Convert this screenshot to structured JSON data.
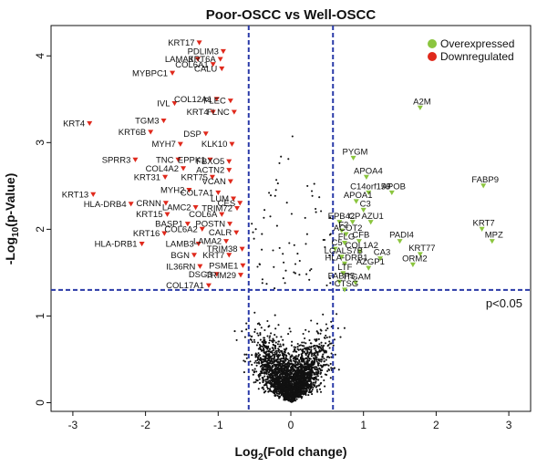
{
  "chart_data": {
    "type": "scatter",
    "title": "Poor-OSCC vs Well-OSCC",
    "xlabel_base": "Log",
    "xlabel_sub": "2",
    "xlabel_rest": "(Fold change)",
    "ylabel_base": "-Log",
    "ylabel_sub": "10",
    "ylabel_rest": "(p-Value)",
    "xlim": [
      -3.3,
      3.3
    ],
    "ylim": [
      -0.1,
      4.35
    ],
    "xticks": [
      -3,
      -2,
      -1,
      0,
      1,
      2,
      3
    ],
    "yticks": [
      0,
      1,
      2,
      3,
      4
    ],
    "thresholds": {
      "fc_low": -0.58,
      "fc_high": 0.58,
      "p": 1.3
    },
    "threshold_label": "p<0.05",
    "legend_position": "top-right",
    "legend": [
      {
        "label": "Overexpressed",
        "color": "#8bc53f"
      },
      {
        "label": "Downregulated",
        "color": "#e0291c"
      }
    ],
    "colors": {
      "up": "#8bc53f",
      "down": "#e0291c",
      "ns": "#111111",
      "threshold": "#2a3aa8"
    },
    "downregulated": [
      {
        "gene": "KRT17",
        "x": -1.26,
        "y": 4.15
      },
      {
        "gene": "PDLIM3",
        "x": -0.93,
        "y": 4.05
      },
      {
        "gene": "LAMA3",
        "x": -1.28,
        "y": 3.96
      },
      {
        "gene": "KRT6A",
        "x": -0.97,
        "y": 3.96
      },
      {
        "gene": "MYBPC1",
        "x": -1.63,
        "y": 3.8
      },
      {
        "gene": "COL6A1",
        "x": -1.07,
        "y": 3.9
      },
      {
        "gene": "CALU",
        "x": -0.95,
        "y": 3.85
      },
      {
        "gene": "COL12A1",
        "x": -1.02,
        "y": 3.5
      },
      {
        "gene": "PLEC",
        "x": -0.83,
        "y": 3.48
      },
      {
        "gene": "IVL",
        "x": -1.6,
        "y": 3.45
      },
      {
        "gene": "KRT4",
        "x": -1.07,
        "y": 3.35
      },
      {
        "gene": "FLNC",
        "x": -0.78,
        "y": 3.35
      },
      {
        "gene": "KRT4",
        "x": -2.77,
        "y": 3.22
      },
      {
        "gene": "TGM3",
        "x": -1.75,
        "y": 3.25
      },
      {
        "gene": "KRT6B",
        "x": -1.93,
        "y": 3.12
      },
      {
        "gene": "DSP",
        "x": -1.17,
        "y": 3.1
      },
      {
        "gene": "MYH7",
        "x": -1.52,
        "y": 2.98
      },
      {
        "gene": "KLK10",
        "x": -0.81,
        "y": 2.98
      },
      {
        "gene": "SPRR3",
        "x": -2.14,
        "y": 2.8
      },
      {
        "gene": "TNC",
        "x": -1.55,
        "y": 2.8
      },
      {
        "gene": "EPPK1",
        "x": -1.11,
        "y": 2.8
      },
      {
        "gene": "FBXO5",
        "x": -0.85,
        "y": 2.78
      },
      {
        "gene": "COL4A2",
        "x": -1.48,
        "y": 2.7
      },
      {
        "gene": "ACTN2",
        "x": -0.85,
        "y": 2.68
      },
      {
        "gene": "KRT31",
        "x": -1.73,
        "y": 2.6
      },
      {
        "gene": "KRT75",
        "x": -1.08,
        "y": 2.6
      },
      {
        "gene": "VCAN",
        "x": -0.83,
        "y": 2.55
      },
      {
        "gene": "KRT13",
        "x": -2.72,
        "y": 2.4
      },
      {
        "gene": "MYH2",
        "x": -1.4,
        "y": 2.45
      },
      {
        "gene": "COL7A1",
        "x": -1.0,
        "y": 2.42
      },
      {
        "gene": "LUM",
        "x": -0.79,
        "y": 2.35
      },
      {
        "gene": "HLA-DRB4",
        "x": -2.2,
        "y": 2.29
      },
      {
        "gene": "CRNN",
        "x": -1.72,
        "y": 2.3
      },
      {
        "gene": "CES",
        "x": -0.7,
        "y": 2.3
      },
      {
        "gene": "LAMC2",
        "x": -1.31,
        "y": 2.25
      },
      {
        "gene": "TRIM72",
        "x": -0.74,
        "y": 2.24
      },
      {
        "gene": "KRT15",
        "x": -1.7,
        "y": 2.17
      },
      {
        "gene": "COL6A",
        "x": -0.95,
        "y": 2.17
      },
      {
        "gene": "BASP1",
        "x": -1.42,
        "y": 2.06
      },
      {
        "gene": "POSTN",
        "x": -0.84,
        "y": 2.06
      },
      {
        "gene": "KRT16",
        "x": -1.74,
        "y": 1.95
      },
      {
        "gene": "COL6A2",
        "x": -1.22,
        "y": 2.0
      },
      {
        "gene": "CALR",
        "x": -0.75,
        "y": 1.96
      },
      {
        "gene": "HLA-DRB1",
        "x": -2.05,
        "y": 1.83
      },
      {
        "gene": "LAMA2",
        "x": -0.89,
        "y": 1.86
      },
      {
        "gene": "LAMB3",
        "x": -1.27,
        "y": 1.83
      },
      {
        "gene": "TRIM38",
        "x": -0.67,
        "y": 1.77
      },
      {
        "gene": "BGN",
        "x": -1.33,
        "y": 1.7
      },
      {
        "gene": "KRT7",
        "x": -0.85,
        "y": 1.7
      },
      {
        "gene": "IL36RN",
        "x": -1.25,
        "y": 1.57
      },
      {
        "gene": "PSME1",
        "x": -0.66,
        "y": 1.58
      },
      {
        "gene": "DSG3",
        "x": -1.02,
        "y": 1.48
      },
      {
        "gene": "TRIM29",
        "x": -0.69,
        "y": 1.47
      },
      {
        "gene": "COL17A1",
        "x": -1.13,
        "y": 1.35
      }
    ],
    "overexpressed": [
      {
        "gene": "A2M",
        "x": 1.78,
        "y": 3.4
      },
      {
        "gene": "PYGM",
        "x": 0.86,
        "y": 2.82
      },
      {
        "gene": "APOA4",
        "x": 1.04,
        "y": 2.6
      },
      {
        "gene": "FABP9",
        "x": 2.65,
        "y": 2.5
      },
      {
        "gene": "C14orf159",
        "x": 1.07,
        "y": 2.42
      },
      {
        "gene": "APOB",
        "x": 1.39,
        "y": 2.42
      },
      {
        "gene": "APOA1",
        "x": 0.9,
        "y": 2.32
      },
      {
        "gene": "C3",
        "x": 1.0,
        "y": 2.22
      },
      {
        "gene": "EPB42",
        "x": 0.67,
        "y": 2.08
      },
      {
        "gene": "CP",
        "x": 0.85,
        "y": 2.08
      },
      {
        "gene": "AZU1",
        "x": 1.1,
        "y": 2.08
      },
      {
        "gene": "F2",
        "x": 0.7,
        "y": 1.98
      },
      {
        "gene": "ACOT2",
        "x": 0.76,
        "y": 1.94
      },
      {
        "gene": "KRT7",
        "x": 2.63,
        "y": 2.0
      },
      {
        "gene": "CFB",
        "x": 0.94,
        "y": 1.86
      },
      {
        "gene": "PADI4",
        "x": 1.5,
        "y": 1.86
      },
      {
        "gene": "MPZ",
        "x": 2.77,
        "y": 1.86
      },
      {
        "gene": "FLG",
        "x": 0.74,
        "y": 1.84
      },
      {
        "gene": "C5",
        "x": 0.61,
        "y": 1.77
      },
      {
        "gene": "COL1A2",
        "x": 0.95,
        "y": 1.74
      },
      {
        "gene": "KRT77",
        "x": 1.78,
        "y": 1.71
      },
      {
        "gene": "LGALS7B",
        "x": 0.7,
        "y": 1.68
      },
      {
        "gene": "CA3",
        "x": 1.23,
        "y": 1.66
      },
      {
        "gene": "HLA-DRB1",
        "x": 0.74,
        "y": 1.6
      },
      {
        "gene": "ORM2",
        "x": 1.68,
        "y": 1.59
      },
      {
        "gene": "AZGP1",
        "x": 1.07,
        "y": 1.55
      },
      {
        "gene": "LTF",
        "x": 0.72,
        "y": 1.49
      },
      {
        "gene": "FABP5",
        "x": 0.67,
        "y": 1.39
      },
      {
        "gene": "ITGAM",
        "x": 0.89,
        "y": 1.38
      },
      {
        "gene": "CTSG",
        "x": 0.74,
        "y": 1.3
      }
    ]
  }
}
